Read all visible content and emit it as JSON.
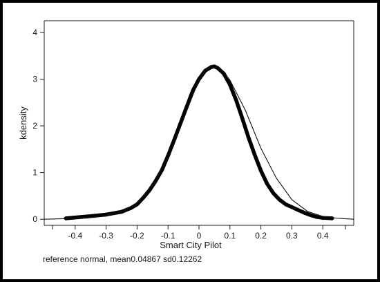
{
  "chart_data": {
    "type": "line",
    "xlabel": "Smart City Pilot",
    "ylabel": "kdensity",
    "note": "reference normal, mean0.04867 sd0.12262",
    "xlim": [
      -0.5,
      0.5
    ],
    "ylim": [
      0,
      4
    ],
    "xticks": [
      -0.4,
      -0.3,
      -0.2,
      -0.1,
      0,
      0.1,
      0.2,
      0.3,
      0.4
    ],
    "xtick_labels": [
      "-0.4",
      "-0.3",
      "-0.2",
      "-0.1",
      "0",
      "0.1",
      "0.2",
      "0.3",
      "0.4"
    ],
    "yticks": [
      0,
      1,
      2,
      3,
      4
    ],
    "ytick_labels": [
      "0",
      "1",
      "2",
      "3",
      "4"
    ],
    "grid": false,
    "reference_normal": {
      "mean": 0.04867,
      "sd": 0.12262
    },
    "series": [
      {
        "style": "markers-dense",
        "x": [
          -0.43,
          -0.36,
          -0.3,
          -0.25,
          -0.22,
          -0.2,
          -0.18,
          -0.16,
          -0.14,
          -0.12,
          -0.1,
          -0.08,
          -0.06,
          -0.04,
          -0.02,
          0.0,
          0.02,
          0.04,
          0.05,
          0.06,
          0.08,
          0.1,
          0.12,
          0.14,
          0.16,
          0.18,
          0.2,
          0.22,
          0.24,
          0.26,
          0.28,
          0.3,
          0.32,
          0.34,
          0.36,
          0.38,
          0.4,
          0.43
        ],
        "y": [
          0.02,
          0.06,
          0.1,
          0.16,
          0.24,
          0.32,
          0.46,
          0.62,
          0.82,
          1.05,
          1.36,
          1.7,
          2.05,
          2.4,
          2.75,
          3.0,
          3.18,
          3.26,
          3.27,
          3.24,
          3.12,
          2.88,
          2.55,
          2.16,
          1.75,
          1.38,
          1.04,
          0.76,
          0.56,
          0.42,
          0.32,
          0.26,
          0.2,
          0.14,
          0.09,
          0.05,
          0.03,
          0.02
        ]
      },
      {
        "style": "line",
        "x": [
          -0.5,
          -0.45,
          -0.4,
          -0.35,
          -0.3,
          -0.25,
          -0.2,
          -0.15,
          -0.1,
          -0.05,
          0.0,
          0.02,
          0.04,
          0.06,
          0.08,
          0.1,
          0.15,
          0.2,
          0.25,
          0.3,
          0.35,
          0.4,
          0.45,
          0.5
        ],
        "y": [
          0.0,
          0.01,
          0.02,
          0.04,
          0.08,
          0.16,
          0.33,
          0.72,
          1.33,
          2.16,
          2.98,
          3.2,
          3.25,
          3.24,
          3.14,
          2.98,
          2.33,
          1.52,
          0.88,
          0.42,
          0.17,
          0.06,
          0.02,
          0.0
        ]
      }
    ]
  }
}
